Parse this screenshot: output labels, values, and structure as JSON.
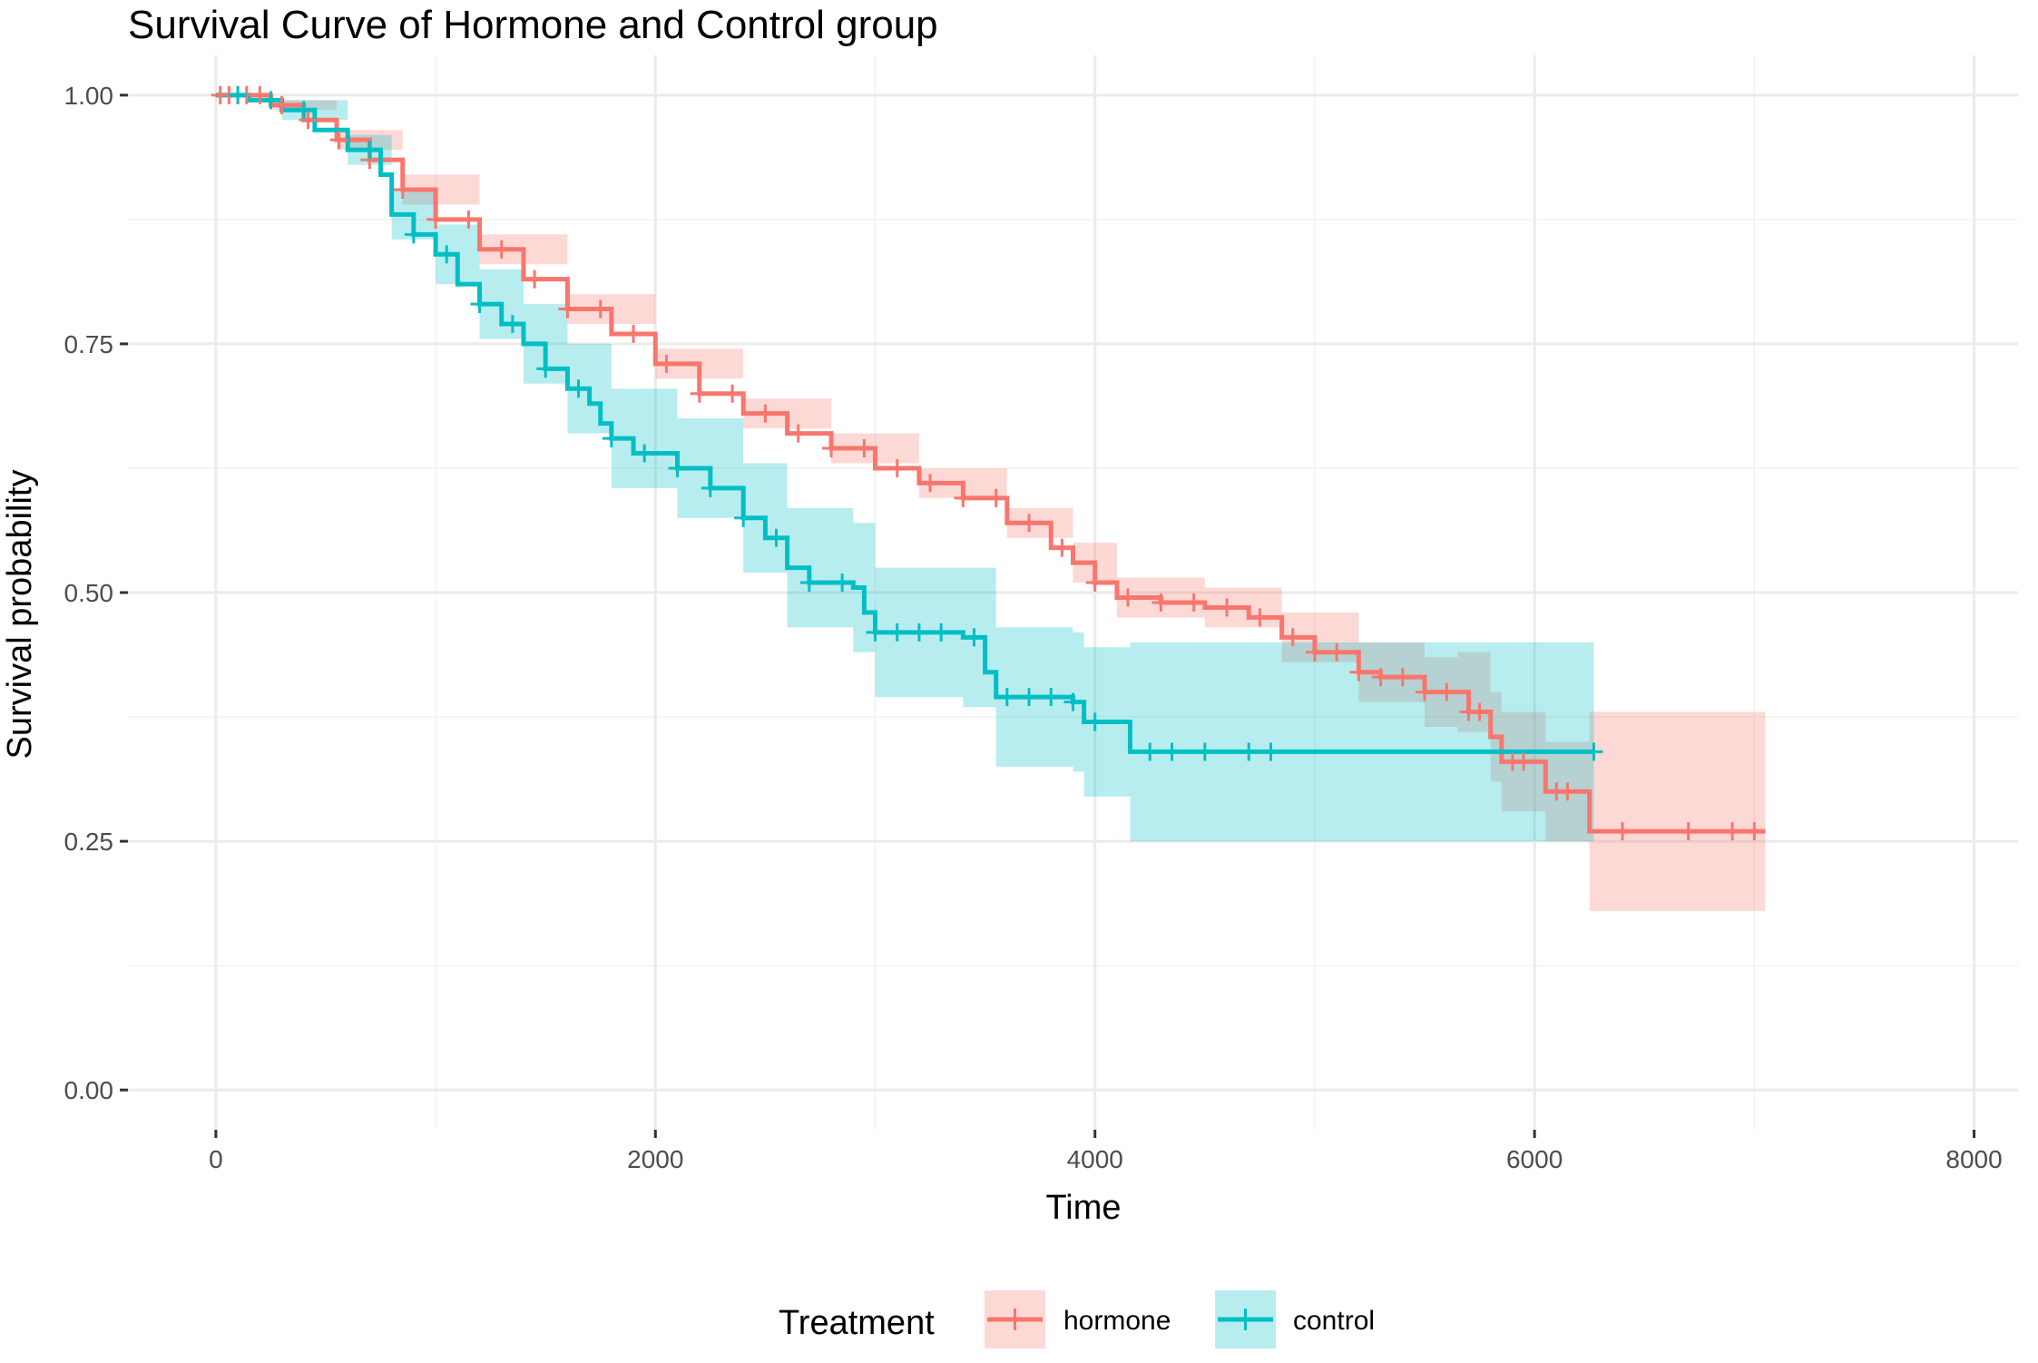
{
  "chart_data": {
    "type": "line",
    "title": "Survival Curve of Hormone and Control group",
    "xlabel": "Time",
    "ylabel": "Survival probability",
    "xlim": [
      -400,
      8200
    ],
    "ylim": [
      -0.04,
      1.04
    ],
    "x_ticks": [
      0,
      2000,
      4000,
      6000,
      8000
    ],
    "x_tick_labels": [
      "0",
      "2000",
      "4000",
      "6000",
      "8000"
    ],
    "y_ticks": [
      0,
      0.25,
      0.5,
      0.75,
      1.0
    ],
    "y_tick_labels": [
      "0.00",
      "0.25",
      "0.50",
      "0.75",
      "1.00"
    ],
    "grid": true,
    "legend": {
      "title": "Treatment",
      "position": "bottom"
    },
    "series": [
      {
        "name": "hormone",
        "color": "#F8766D",
        "band_color": "#F8766D",
        "points": [
          [
            0,
            1.0
          ],
          [
            150,
            1.0
          ],
          [
            250,
            0.99
          ],
          [
            400,
            0.975
          ],
          [
            550,
            0.955
          ],
          [
            700,
            0.935
          ],
          [
            850,
            0.905
          ],
          [
            1000,
            0.875
          ],
          [
            1200,
            0.845
          ],
          [
            1400,
            0.815
          ],
          [
            1600,
            0.785
          ],
          [
            1800,
            0.76
          ],
          [
            2000,
            0.73
          ],
          [
            2200,
            0.7
          ],
          [
            2400,
            0.68
          ],
          [
            2600,
            0.66
          ],
          [
            2800,
            0.645
          ],
          [
            3000,
            0.625
          ],
          [
            3200,
            0.61
          ],
          [
            3400,
            0.595
          ],
          [
            3600,
            0.57
          ],
          [
            3800,
            0.545
          ],
          [
            3900,
            0.53
          ],
          [
            4000,
            0.51
          ],
          [
            4100,
            0.495
          ],
          [
            4300,
            0.49
          ],
          [
            4500,
            0.485
          ],
          [
            4700,
            0.475
          ],
          [
            4850,
            0.455
          ],
          [
            5000,
            0.44
          ],
          [
            5200,
            0.42
          ],
          [
            5300,
            0.415
          ],
          [
            5500,
            0.4
          ],
          [
            5650,
            0.4
          ],
          [
            5700,
            0.38
          ],
          [
            5800,
            0.355
          ],
          [
            5850,
            0.33
          ],
          [
            6000,
            0.33
          ],
          [
            6050,
            0.3
          ],
          [
            6200,
            0.3
          ],
          [
            6250,
            0.26
          ],
          [
            7050,
            0.26
          ]
        ],
        "lower": [
          [
            0,
            1.0
          ],
          [
            250,
            0.985
          ],
          [
            550,
            0.945
          ],
          [
            850,
            0.89
          ],
          [
            1200,
            0.83
          ],
          [
            1600,
            0.77
          ],
          [
            2000,
            0.715
          ],
          [
            2400,
            0.665
          ],
          [
            2800,
            0.63
          ],
          [
            3200,
            0.595
          ],
          [
            3600,
            0.555
          ],
          [
            3900,
            0.51
          ],
          [
            4100,
            0.475
          ],
          [
            4500,
            0.465
          ],
          [
            4850,
            0.43
          ],
          [
            5200,
            0.39
          ],
          [
            5500,
            0.365
          ],
          [
            5650,
            0.36
          ],
          [
            5800,
            0.31
          ],
          [
            5850,
            0.28
          ],
          [
            6050,
            0.25
          ],
          [
            6200,
            0.25
          ],
          [
            6250,
            0.18
          ],
          [
            7050,
            0.18
          ]
        ],
        "upper": [
          [
            0,
            1.0
          ],
          [
            250,
            0.995
          ],
          [
            550,
            0.965
          ],
          [
            850,
            0.92
          ],
          [
            1200,
            0.86
          ],
          [
            1600,
            0.8
          ],
          [
            2000,
            0.745
          ],
          [
            2400,
            0.695
          ],
          [
            2800,
            0.66
          ],
          [
            3200,
            0.625
          ],
          [
            3600,
            0.585
          ],
          [
            3900,
            0.55
          ],
          [
            4100,
            0.515
          ],
          [
            4500,
            0.505
          ],
          [
            4850,
            0.48
          ],
          [
            5200,
            0.45
          ],
          [
            5500,
            0.435
          ],
          [
            5650,
            0.44
          ],
          [
            5800,
            0.4
          ],
          [
            5850,
            0.38
          ],
          [
            6050,
            0.35
          ],
          [
            6200,
            0.35
          ],
          [
            6250,
            0.38
          ],
          [
            7050,
            0.38
          ]
        ],
        "censor_times": [
          20,
          60,
          100,
          140,
          200,
          300,
          420,
          560,
          700,
          850,
          1000,
          1150,
          1300,
          1450,
          1600,
          1750,
          1900,
          2050,
          2200,
          2350,
          2500,
          2650,
          2800,
          2950,
          3100,
          3250,
          3400,
          3550,
          3700,
          3850,
          4000,
          4150,
          4300,
          4450,
          4600,
          4750,
          4900,
          5000,
          5100,
          5200,
          5300,
          5400,
          5500,
          5600,
          5700,
          5750,
          5900,
          5950,
          6100,
          6150,
          6400,
          6700,
          6900,
          7000
        ]
      },
      {
        "name": "control",
        "color": "#00BFC4",
        "band_color": "#00BFC4",
        "points": [
          [
            0,
            1.0
          ],
          [
            150,
            0.995
          ],
          [
            300,
            0.985
          ],
          [
            450,
            0.965
          ],
          [
            600,
            0.945
          ],
          [
            750,
            0.92
          ],
          [
            800,
            0.88
          ],
          [
            900,
            0.86
          ],
          [
            1000,
            0.84
          ],
          [
            1100,
            0.81
          ],
          [
            1200,
            0.79
          ],
          [
            1300,
            0.77
          ],
          [
            1400,
            0.75
          ],
          [
            1500,
            0.725
          ],
          [
            1600,
            0.705
          ],
          [
            1700,
            0.69
          ],
          [
            1750,
            0.67
          ],
          [
            1800,
            0.655
          ],
          [
            1900,
            0.64
          ],
          [
            2100,
            0.625
          ],
          [
            2250,
            0.605
          ],
          [
            2400,
            0.575
          ],
          [
            2500,
            0.555
          ],
          [
            2600,
            0.525
          ],
          [
            2700,
            0.51
          ],
          [
            2900,
            0.505
          ],
          [
            2950,
            0.48
          ],
          [
            3000,
            0.46
          ],
          [
            3400,
            0.455
          ],
          [
            3500,
            0.42
          ],
          [
            3550,
            0.395
          ],
          [
            3900,
            0.39
          ],
          [
            3950,
            0.37
          ],
          [
            4150,
            0.37
          ],
          [
            4160,
            0.34
          ],
          [
            6270,
            0.34
          ]
        ],
        "lower": [
          [
            0,
            1.0
          ],
          [
            300,
            0.975
          ],
          [
            600,
            0.93
          ],
          [
            800,
            0.855
          ],
          [
            1000,
            0.81
          ],
          [
            1200,
            0.755
          ],
          [
            1400,
            0.71
          ],
          [
            1600,
            0.66
          ],
          [
            1800,
            0.605
          ],
          [
            2100,
            0.575
          ],
          [
            2400,
            0.52
          ],
          [
            2600,
            0.465
          ],
          [
            2900,
            0.44
          ],
          [
            3000,
            0.395
          ],
          [
            3400,
            0.385
          ],
          [
            3550,
            0.325
          ],
          [
            3900,
            0.32
          ],
          [
            3950,
            0.295
          ],
          [
            4150,
            0.295
          ],
          [
            4160,
            0.25
          ],
          [
            6270,
            0.25
          ]
        ],
        "upper": [
          [
            0,
            1.0
          ],
          [
            300,
            0.995
          ],
          [
            600,
            0.96
          ],
          [
            800,
            0.905
          ],
          [
            1000,
            0.87
          ],
          [
            1200,
            0.825
          ],
          [
            1400,
            0.79
          ],
          [
            1600,
            0.75
          ],
          [
            1800,
            0.705
          ],
          [
            2100,
            0.675
          ],
          [
            2400,
            0.63
          ],
          [
            2600,
            0.585
          ],
          [
            2900,
            0.57
          ],
          [
            3000,
            0.525
          ],
          [
            3400,
            0.525
          ],
          [
            3550,
            0.465
          ],
          [
            3900,
            0.46
          ],
          [
            3950,
            0.445
          ],
          [
            4150,
            0.445
          ],
          [
            4160,
            0.45
          ],
          [
            6270,
            0.45
          ]
        ],
        "censor_times": [
          100,
          250,
          400,
          700,
          900,
          1050,
          1200,
          1350,
          1500,
          1650,
          1800,
          1950,
          2100,
          2250,
          2400,
          2550,
          2700,
          2850,
          3000,
          3100,
          3200,
          3300,
          3450,
          3600,
          3700,
          3800,
          3900,
          4000,
          4250,
          4350,
          4500,
          4700,
          4800,
          6270
        ]
      }
    ]
  }
}
